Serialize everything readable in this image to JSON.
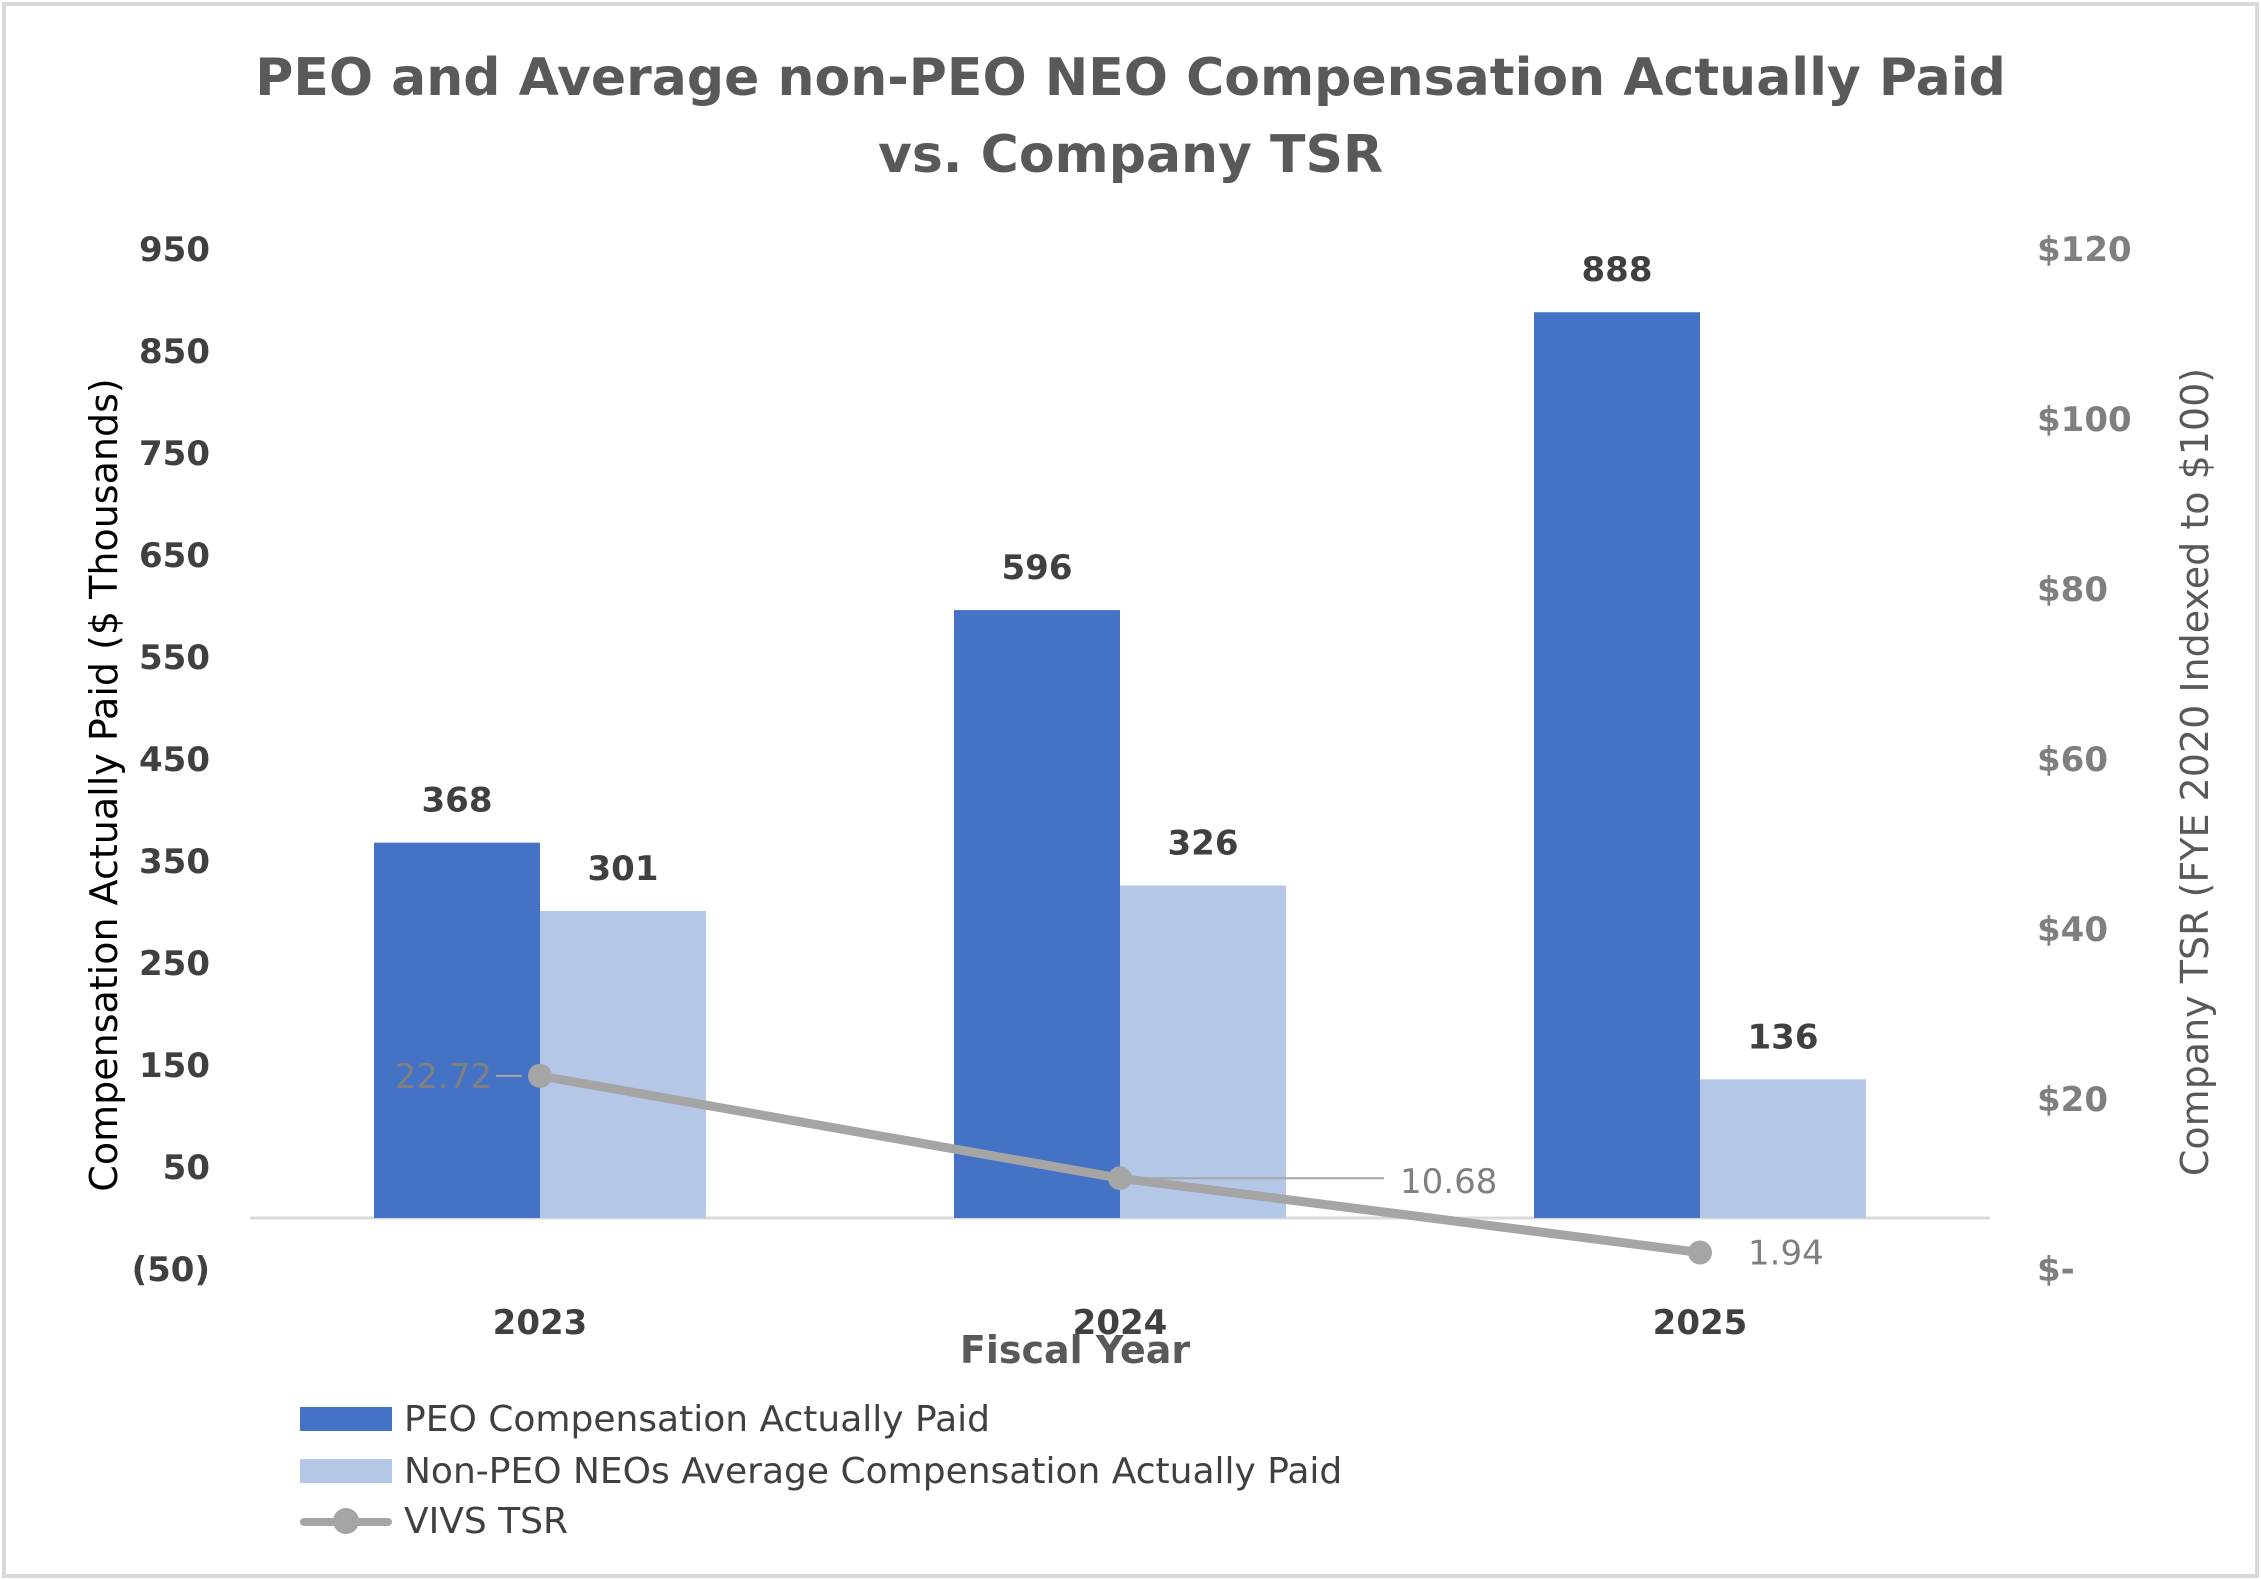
{
  "chart_data": {
    "type": "bar",
    "title": "PEO and Average non-PEO NEO Compensation Actually Paid",
    "subtitle": "vs. Company TSR",
    "categories": [
      "2023",
      "2024",
      "2025"
    ],
    "xlabel": "Fiscal Year",
    "ylabel": "Compensation Actually Paid ($ Thousands)",
    "ylabel_right": "Company TSR (FYE 2020 Indexed to $100)",
    "ylim": [
      -50,
      950
    ],
    "yticks": [
      "950",
      "850",
      "750",
      "650",
      "550",
      "450",
      "350",
      "250",
      "150",
      "50",
      "(50)"
    ],
    "ylim_right": [
      0,
      120
    ],
    "yticks_right": [
      "$120",
      "$100",
      "$80",
      "$60",
      "$40",
      "$20",
      "$-"
    ],
    "series": [
      {
        "name": "PEO Compensation Actually Paid",
        "type": "bar",
        "color": "#4472c4",
        "values": [
          368,
          596,
          888
        ],
        "labels": [
          "368",
          "596",
          "888"
        ]
      },
      {
        "name": "Non-PEO NEOs Average Compensation Actually Paid",
        "type": "bar",
        "color": "#b4c7e7",
        "values": [
          301,
          326,
          136
        ],
        "labels": [
          "301",
          "326",
          "136"
        ]
      },
      {
        "name": "VIVS TSR",
        "type": "line",
        "axis": "right",
        "color": "#a5a5a5",
        "values": [
          22.72,
          10.68,
          1.94
        ],
        "labels": [
          "22.72",
          "10.68",
          "1.94"
        ]
      }
    ],
    "grid": false,
    "legend": "bottom-left"
  }
}
